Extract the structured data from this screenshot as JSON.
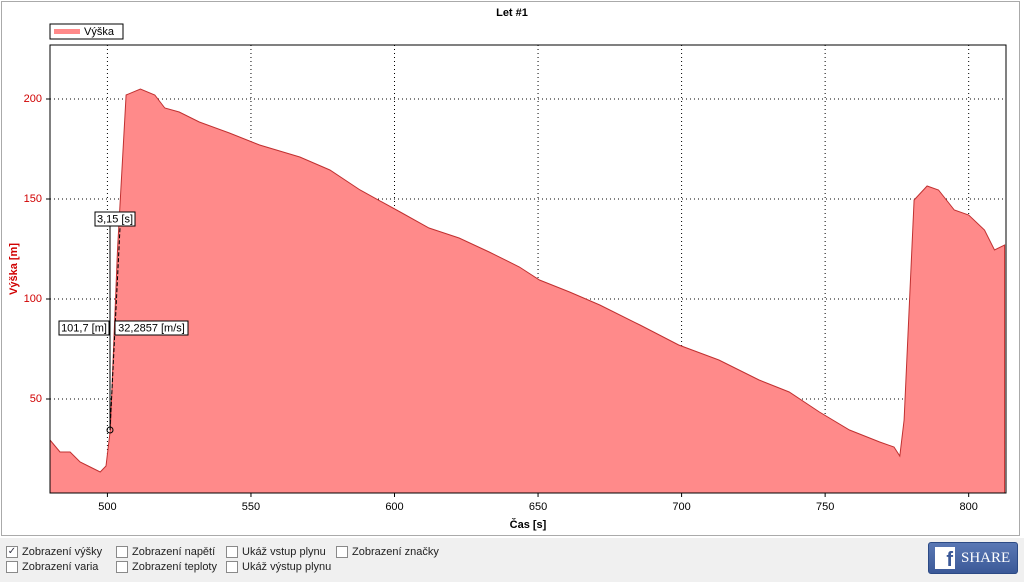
{
  "chart_data": {
    "type": "area",
    "title": "Let #1",
    "x_label": "Čas [s]",
    "y_label": "Výška [m]",
    "x": [
      480,
      483.5,
      487,
      490.5,
      494,
      497.5,
      499.5,
      501,
      503.5,
      506.5,
      511.5,
      516.5,
      520,
      525,
      532,
      542.5,
      553,
      567,
      577.5,
      588,
      602,
      612,
      622.5,
      633,
      643.5,
      650.5,
      661,
      671.5,
      685.5,
      699,
      713,
      727,
      737.5,
      748,
      758.5,
      769,
      774,
      776,
      777.5,
      781,
      785.5,
      789.5,
      795,
      800,
      805.5,
      809,
      812.5
    ],
    "series": [
      {
        "name": "Výška",
        "color": "#ff8a8a",
        "values": [
          29.5,
          23.5,
          23.5,
          18.5,
          16,
          13.5,
          16.5,
          34.5,
          124.5,
          202,
          205,
          202,
          195.5,
          193.5,
          188.5,
          183,
          177,
          171,
          164.5,
          154.5,
          143.5,
          135.5,
          130.5,
          123.5,
          116,
          109.5,
          103.5,
          97,
          87,
          77,
          69.5,
          59.5,
          53.5,
          43.5,
          34.5,
          28.5,
          26,
          21.5,
          39.5,
          149.5,
          156.5,
          154.5,
          144.5,
          142,
          134.5,
          124.5,
          127
        ]
      }
    ],
    "xlim": [
      480,
      813
    ],
    "ylim": [
      3,
      227
    ],
    "xticks": [
      500,
      550,
      600,
      650,
      700,
      750,
      800
    ],
    "yticks": [
      50,
      100,
      150,
      200
    ],
    "grid": true,
    "annotations": [
      "3,15 [s]",
      "101,7 [m]",
      "32,2857 [m/s]"
    ]
  },
  "controls": [
    {
      "label": "Zobrazení výšky",
      "checked": true
    },
    {
      "label": "Zobrazení varia",
      "checked": false
    },
    {
      "label": "Zobrazení napětí",
      "checked": false
    },
    {
      "label": "Zobrazení teploty",
      "checked": false
    },
    {
      "label": "Ukáž vstup plynu",
      "checked": false
    },
    {
      "label": "Ukáž výstup plynu",
      "checked": false
    },
    {
      "label": "Zobrazení značky",
      "checked": false
    }
  ],
  "share_button": {
    "icon": "f",
    "label": "SHARE"
  }
}
